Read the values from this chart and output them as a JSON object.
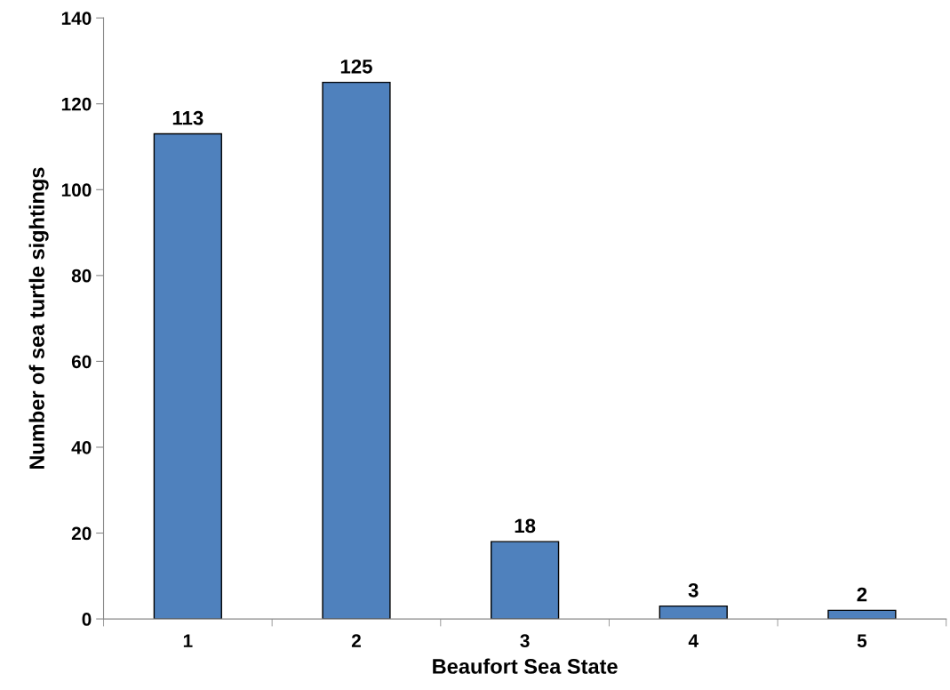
{
  "chart_data": {
    "type": "bar",
    "xlabel": "Beaufort Sea State",
    "ylabel": "Number of sea turtle sightings",
    "categories": [
      "1",
      "2",
      "3",
      "4",
      "5"
    ],
    "values": [
      113,
      125,
      18,
      3,
      2
    ],
    "color": "#4f81bd",
    "ylim": [
      0,
      140
    ],
    "yticks": [
      0,
      20,
      40,
      60,
      80,
      100,
      120,
      140
    ],
    "grid": false,
    "legend": false,
    "data_labels": true
  }
}
